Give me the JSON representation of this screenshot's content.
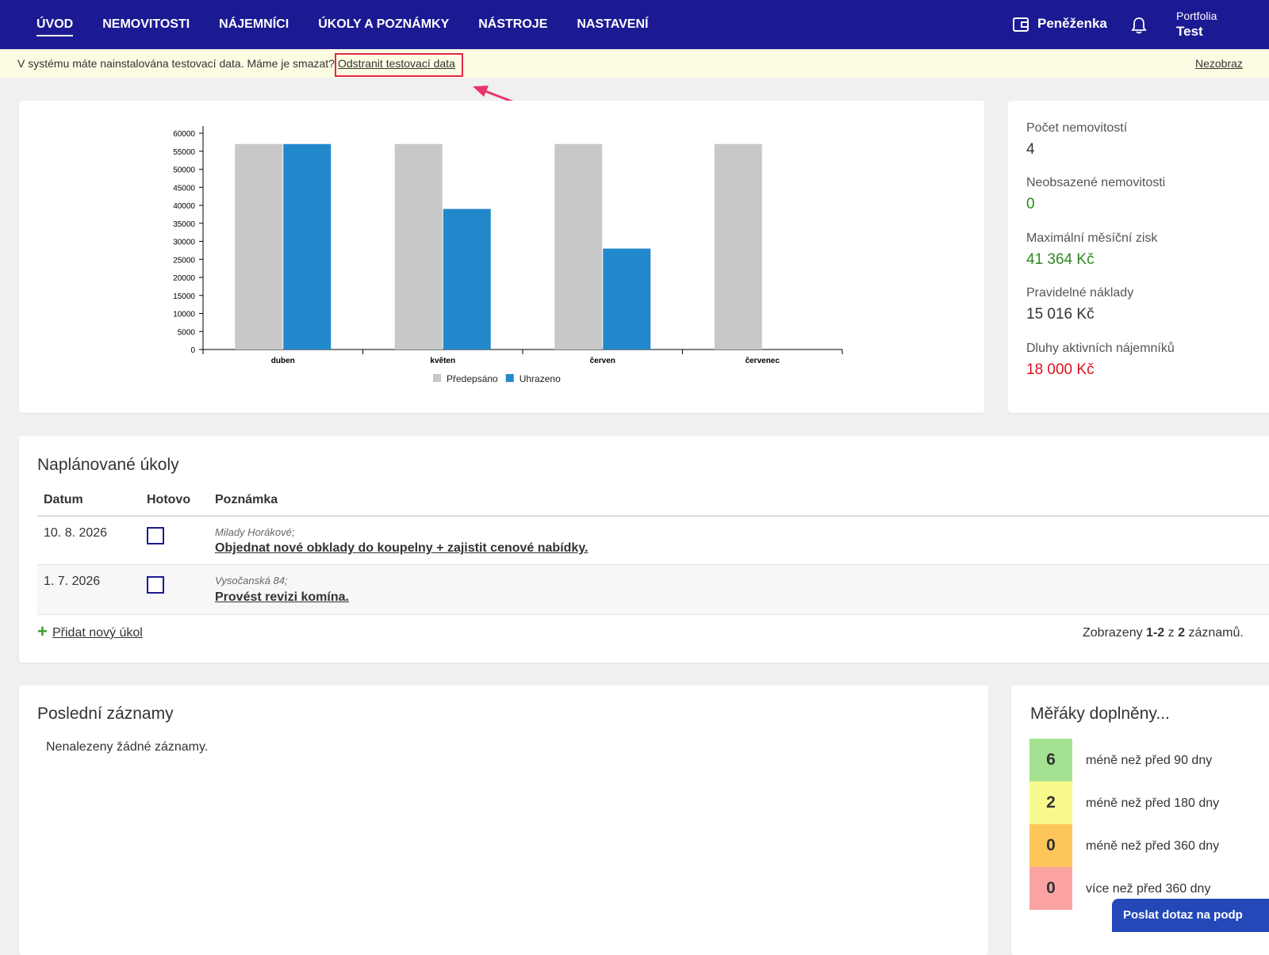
{
  "nav": {
    "items": [
      "ÚVOD",
      "NEMOVITOSTI",
      "NÁJEMNÍCI",
      "ÚKOLY A POZNÁMKY",
      "NÁSTROJE",
      "NASTAVENÍ"
    ],
    "wallet": "Peněženka",
    "portfolio_label": "Portfolia",
    "portfolio_name": "Test"
  },
  "banner": {
    "text": "V systému máte nainstalována testovací data. Máme je smazat?",
    "link": "Odstranit testovací data",
    "dismiss": "Nezobraz"
  },
  "chart_data": {
    "type": "bar",
    "categories": [
      "duben",
      "květen",
      "červen",
      "červenec"
    ],
    "series": [
      {
        "name": "Předepsáno",
        "color": "#c8c8c8",
        "values": [
          57000,
          57000,
          57000,
          57000
        ]
      },
      {
        "name": "Uhrazeno",
        "color": "#2288cc",
        "values": [
          57000,
          39000,
          28000,
          0
        ]
      }
    ],
    "ylim": [
      0,
      62000
    ],
    "yticks": [
      0,
      5000,
      10000,
      15000,
      20000,
      25000,
      30000,
      35000,
      40000,
      45000,
      50000,
      55000,
      60000
    ],
    "legend": "bottom"
  },
  "stats": [
    {
      "label": "Počet nemovitostí",
      "value": "4"
    },
    {
      "label": "Neobsazené nemovitosti",
      "value": "0"
    },
    {
      "label": "Maximální měsíční zisk",
      "value": "41 364 Kč"
    },
    {
      "label": "Pravidelné náklady",
      "value": "15 016 Kč"
    },
    {
      "label": "Dluhy aktivních nájemníků",
      "value": "18 000 Kč"
    }
  ],
  "tasks": {
    "title": "Naplánované úkoly",
    "columns": [
      "Datum",
      "Hotovo",
      "Poznámka"
    ],
    "rows": [
      {
        "date": "10. 8. 2026",
        "place": "Milady Horákové;",
        "note": "Objednat nové obklady do koupelny + zajistit cenové nabídky."
      },
      {
        "date": "1. 7. 2026",
        "place": "Vysočanská 84;",
        "note": "Provést revizi komína."
      }
    ],
    "add": "Přidat nový úkol",
    "summary": [
      "Zobrazeny",
      "1-2",
      "z",
      "2",
      "záznamů."
    ]
  },
  "records": {
    "title": "Poslední záznamy",
    "empty": "Nenalezeny žádné záznamy."
  },
  "meters": {
    "title": "Měřáky doplněny...",
    "rows": [
      {
        "count": "6",
        "label": "méně než před 90 dny"
      },
      {
        "count": "2",
        "label": "méně než před 180 dny"
      },
      {
        "count": "0",
        "label": "méně než před 360 dny"
      },
      {
        "count": "0",
        "label": "více než před 360 dny"
      }
    ]
  },
  "support": "Poslat dotaz na podp"
}
